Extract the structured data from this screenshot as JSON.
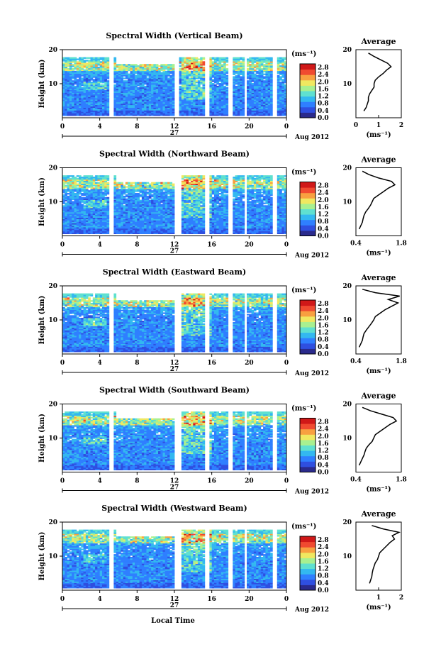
{
  "common": {
    "ylabel": "Height (km)",
    "xlabel": "Local Time",
    "date_label": "27",
    "month_label": "Aug 2012",
    "x_ticks": [
      "0",
      "4",
      "8",
      "12",
      "16",
      "20",
      "0"
    ],
    "y_ticks": [
      "20",
      "10"
    ],
    "colorbar_unit": "(ms⁻¹)",
    "colorbar_ticks": [
      "2.8",
      "2.4",
      "2.0",
      "1.6",
      "1.2",
      "0.8",
      "0.4",
      "0.0"
    ],
    "avg_title": "Average",
    "avg_xunit": "(ms⁻¹)",
    "colormap": [
      "#2a2a8c",
      "#2f4fe0",
      "#2f7fff",
      "#33b8f0",
      "#5fe0d0",
      "#a8f090",
      "#f0e860",
      "#f8a040",
      "#f04a30",
      "#d01818"
    ]
  },
  "chart_data": [
    {
      "type": "heatmap",
      "title": "Spectral Width (Vertical Beam)",
      "x_range_hours": [
        0,
        24
      ],
      "y_range_km": [
        0,
        20
      ],
      "color_range": [
        0.0,
        3.0
      ],
      "data_gaps_hours": [
        [
          4.9,
          5.6
        ],
        [
          12.0,
          12.6
        ],
        [
          15.2,
          15.7
        ],
        [
          17.8,
          18.3
        ],
        [
          19.4,
          19.8
        ],
        [
          22.6,
          23.0
        ]
      ],
      "profile": {
        "xlim": [
          0,
          2
        ],
        "x_ticks": [
          "0",
          "1",
          "2"
        ],
        "height_km": [
          2,
          3,
          4,
          5,
          6,
          7,
          8,
          9,
          10,
          11,
          12,
          13,
          14,
          15,
          16,
          17,
          18,
          19
        ],
        "values": [
          0.35,
          0.45,
          0.5,
          0.55,
          0.55,
          0.6,
          0.7,
          0.8,
          0.8,
          0.85,
          1.0,
          1.2,
          1.35,
          1.55,
          1.4,
          1.1,
          0.8,
          0.55
        ]
      }
    },
    {
      "type": "heatmap",
      "title": "Spectral Width (Northward Beam)",
      "x_range_hours": [
        0,
        24
      ],
      "y_range_km": [
        0,
        20
      ],
      "color_range": [
        0.0,
        3.0
      ],
      "data_gaps_hours": [
        [
          5.0,
          5.6
        ],
        [
          12.0,
          12.7
        ],
        [
          15.2,
          15.7
        ],
        [
          17.8,
          18.3
        ],
        [
          19.4,
          19.8
        ],
        [
          22.6,
          23.0
        ]
      ],
      "profile": {
        "xlim": [
          0.4,
          1.8
        ],
        "x_ticks": [
          "0.4",
          "1.8"
        ],
        "height_km": [
          2,
          3,
          4,
          5,
          6,
          7,
          8,
          9,
          10,
          11,
          12,
          13,
          14,
          15,
          16,
          17,
          18,
          19
        ],
        "values": [
          0.5,
          0.55,
          0.6,
          0.62,
          0.65,
          0.7,
          0.78,
          0.85,
          0.9,
          0.95,
          1.1,
          1.25,
          1.4,
          1.6,
          1.5,
          1.1,
          0.8,
          0.6
        ]
      }
    },
    {
      "type": "heatmap",
      "title": "Spectral Width (Eastward Beam)",
      "x_range_hours": [
        0,
        24
      ],
      "y_range_km": [
        0,
        20
      ],
      "color_range": [
        0.0,
        3.0
      ],
      "data_gaps_hours": [
        [
          5.0,
          5.6
        ],
        [
          12.0,
          12.7
        ],
        [
          15.2,
          15.7
        ],
        [
          17.8,
          18.3
        ],
        [
          19.4,
          19.8
        ],
        [
          22.6,
          23.0
        ]
      ],
      "profile": {
        "xlim": [
          0.4,
          1.8
        ],
        "x_ticks": [
          "0.4",
          "1.8"
        ],
        "height_km": [
          2,
          3,
          4,
          5,
          6,
          7,
          8,
          9,
          10,
          11,
          12,
          13,
          14,
          15,
          16,
          17,
          18,
          19
        ],
        "values": [
          0.5,
          0.55,
          0.6,
          0.62,
          0.65,
          0.72,
          0.8,
          0.88,
          0.95,
          1.0,
          1.15,
          1.3,
          1.5,
          1.7,
          1.4,
          1.75,
          1.0,
          0.6
        ]
      }
    },
    {
      "type": "heatmap",
      "title": "Spectral Width (Southward Beam)",
      "x_range_hours": [
        0,
        24
      ],
      "y_range_km": [
        0,
        20
      ],
      "color_range": [
        0.0,
        3.0
      ],
      "data_gaps_hours": [
        [
          5.0,
          5.6
        ],
        [
          12.0,
          12.7
        ],
        [
          15.2,
          15.7
        ],
        [
          17.8,
          18.3
        ],
        [
          19.4,
          19.8
        ],
        [
          22.6,
          23.0
        ]
      ],
      "profile": {
        "xlim": [
          0.4,
          1.8
        ],
        "x_ticks": [
          "0.4",
          "1.8"
        ],
        "height_km": [
          2,
          3,
          4,
          5,
          6,
          7,
          8,
          9,
          10,
          11,
          12,
          13,
          14,
          15,
          16,
          17,
          18,
          19
        ],
        "values": [
          0.5,
          0.55,
          0.6,
          0.65,
          0.68,
          0.72,
          0.8,
          0.9,
          0.95,
          1.0,
          1.15,
          1.3,
          1.45,
          1.65,
          1.55,
          1.2,
          0.85,
          0.6
        ]
      }
    },
    {
      "type": "heatmap",
      "title": "Spectral Width (Westward Beam)",
      "x_range_hours": [
        0,
        24
      ],
      "y_range_km": [
        0,
        20
      ],
      "color_range": [
        0.0,
        3.0
      ],
      "data_gaps_hours": [
        [
          5.0,
          5.6
        ],
        [
          12.0,
          12.7
        ],
        [
          15.2,
          15.7
        ],
        [
          17.8,
          18.3
        ],
        [
          19.4,
          19.8
        ],
        [
          22.6,
          23.0
        ]
      ],
      "profile": {
        "xlim": [
          0,
          2
        ],
        "x_ticks": [
          "1",
          "2"
        ],
        "height_km": [
          2,
          3,
          4,
          5,
          6,
          7,
          8,
          9,
          10,
          11,
          12,
          13,
          14,
          15,
          16,
          17,
          18,
          19
        ],
        "values": [
          0.6,
          0.65,
          0.7,
          0.72,
          0.75,
          0.8,
          0.85,
          0.95,
          1.0,
          1.05,
          1.2,
          1.35,
          1.5,
          1.7,
          1.6,
          1.9,
          1.2,
          0.7
        ]
      }
    }
  ]
}
